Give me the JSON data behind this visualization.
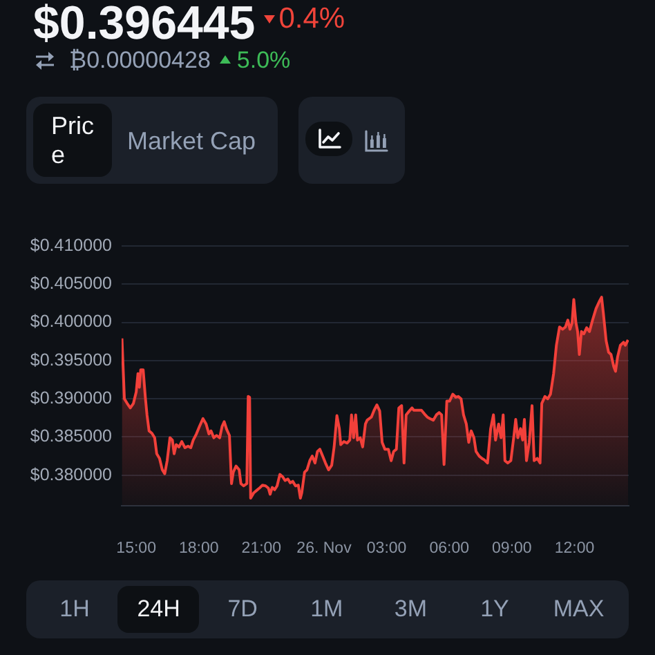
{
  "chart_data": {
    "type": "area",
    "title": "$0.396445",
    "annotations": [
      "0.4%",
      "₿0.00000428",
      "5.0%",
      "Price",
      "Market Cap",
      "1H",
      "24H",
      "7D",
      "1M",
      "3M",
      "1Y",
      "MAX"
    ],
    "x": [
      "--11-25T14:19",
      "--11-25T14:26",
      "--11-25T14:34",
      "--11-25T14:43",
      "--11-25T14:52",
      "--11-25T15:00",
      "--11-25T15:05",
      "--11-25T15:09",
      "--11-25T15:13",
      "--11-25T15:20",
      "--11-25T15:26",
      "--11-25T15:31",
      "--11-25T15:37",
      "--11-25T15:45",
      "--11-25T15:53",
      "--11-25T15:59",
      "--11-25T16:07",
      "--11-25T16:15",
      "--11-25T16:22",
      "--11-25T16:29",
      "--11-25T16:37",
      "--11-25T16:44",
      "--11-25T16:49",
      "--11-25T16:55",
      "--11-25T17:03",
      "--11-25T17:11",
      "--11-25T17:20",
      "--11-25T17:29",
      "--11-25T17:37",
      "--11-25T17:44",
      "--11-25T17:53",
      "--11-25T18:02",
      "--11-25T18:12",
      "--11-25T18:21",
      "--11-25T18:29",
      "--11-25T18:35",
      "--11-25T18:43",
      "--11-25T18:51",
      "--11-25T19:00",
      "--11-25T19:07",
      "--11-25T19:13",
      "--11-25T19:20",
      "--11-25T19:28",
      "--11-25T19:34",
      "--11-25T19:39",
      "--11-25T19:47",
      "--11-25T19:56",
      "--11-25T20:01",
      "--11-25T20:09",
      "--11-25T20:18",
      "--11-25T20:22",
      "--11-25T20:26",
      "--11-25T20:29",
      "--11-25T20:38",
      "--11-25T20:46",
      "--11-25T20:54",
      "--11-25T21:03",
      "--11-25T21:12",
      "--11-25T21:20",
      "--11-25T21:25",
      "--11-25T21:31",
      "--11-25T21:38",
      "--11-25T21:45",
      "--11-25T21:53",
      "--11-25T22:01",
      "--11-25T22:08",
      "--11-25T22:16",
      "--11-25T22:23",
      "--11-25T22:30",
      "--11-25T22:38",
      "--11-25T22:46",
      "--11-25T22:52",
      "--11-25T22:56",
      "--11-25T23:04",
      "--11-25T23:11",
      "--11-25T23:19",
      "--11-25T23:26",
      "--11-25T23:34",
      "--11-25T23:41",
      "--11-25T23:48",
      "--11-25T23:56",
      "--11-26T00:04",
      "--11-26T00:13",
      "--11-26T00:22",
      "--11-26T00:29",
      "--11-26T00:37",
      "--11-26T00:44",
      "--11-26T00:48",
      "--11-26T00:57",
      "--11-26T01:06",
      "--11-26T01:14",
      "--11-26T01:19",
      "--11-26T01:25",
      "--11-26T01:31",
      "--11-26T01:36",
      "--11-26T01:44",
      "--11-26T01:51",
      "--11-26T01:59",
      "--11-26T02:04",
      "--11-26T02:16",
      "--11-26T02:24",
      "--11-26T02:32",
      "--11-26T02:40",
      "--11-26T02:47",
      "--11-26T02:55",
      "--11-26T03:05",
      "--11-26T03:13",
      "--11-26T03:20",
      "--11-26T03:28",
      "--11-26T03:35",
      "--11-26T03:43",
      "--11-26T03:50",
      "--11-26T03:56",
      "--11-26T04:05",
      "--11-26T04:13",
      "--11-26T04:18",
      "--11-26T04:29",
      "--11-26T04:40",
      "--11-26T04:49",
      "--11-26T04:57",
      "--11-26T05:05",
      "--11-26T05:14",
      "--11-26T05:23",
      "--11-26T05:31",
      "--11-26T05:38",
      "--11-26T05:45",
      "--11-26T05:53",
      "--11-26T06:01",
      "--11-26T06:10",
      "--11-26T06:19",
      "--11-26T06:26",
      "--11-26T06:34",
      "--11-26T06:41",
      "--11-26T06:49",
      "--11-26T06:56",
      "--11-26T07:03",
      "--11-26T07:11",
      "--11-26T07:17",
      "--11-26T07:26",
      "--11-26T07:34",
      "--11-26T07:41",
      "--11-26T07:50",
      "--11-26T07:59",
      "--11-26T08:07",
      "--11-26T08:13",
      "--11-26T08:22",
      "--11-26T08:29",
      "--11-26T08:35",
      "--11-26T08:40",
      "--11-26T08:48",
      "--11-26T08:57",
      "--11-26T09:06",
      "--11-26T09:11",
      "--11-26T09:17",
      "--11-26T09:25",
      "--11-26T09:31",
      "--11-26T09:36",
      "--11-26T09:42",
      "--11-26T09:50",
      "--11-26T09:58",
      "--11-26T10:04",
      "--11-26T10:13",
      "--11-26T10:21",
      "--11-26T10:26",
      "--11-26T10:35",
      "--11-26T10:43",
      "--11-26T10:51",
      "--11-26T11:00",
      "--11-26T11:08",
      "--11-26T11:17",
      "--11-26T11:26",
      "--11-26T11:34",
      "--11-26T11:41",
      "--11-26T11:47",
      "--11-26T11:53",
      "--11-26T11:58",
      "--11-26T12:04",
      "--11-26T12:09",
      "--11-26T12:14",
      "--11-26T12:20",
      "--11-26T12:27",
      "--11-26T12:35",
      "--11-26T12:43",
      "--11-26T12:52",
      "--11-26T13:02",
      "--11-26T13:11",
      "--11-26T13:18",
      "--11-26T13:23",
      "--11-26T13:31",
      "--11-26T13:38",
      "--11-26T13:45",
      "--11-26T13:53",
      "--11-26T13:58",
      "--11-26T14:04",
      "--11-26T14:12",
      "--11-26T14:21",
      "--11-26T14:26",
      "--11-26T14:34"
    ],
    "values": [
      0.3979,
      0.39,
      0.3894,
      0.3888,
      0.3894,
      0.3909,
      0.3933,
      0.3915,
      0.3938,
      0.3938,
      0.3903,
      0.3879,
      0.3858,
      0.3855,
      0.3849,
      0.3828,
      0.3822,
      0.3807,
      0.3802,
      0.3819,
      0.3849,
      0.3846,
      0.3828,
      0.384,
      0.3837,
      0.3844,
      0.3836,
      0.3838,
      0.3836,
      0.3846,
      0.3854,
      0.3864,
      0.3874,
      0.3867,
      0.3854,
      0.3858,
      0.3849,
      0.3852,
      0.3849,
      0.3864,
      0.387,
      0.386,
      0.3852,
      0.3789,
      0.3804,
      0.3812,
      0.3807,
      0.3789,
      0.3786,
      0.3789,
      0.3903,
      0.3902,
      0.377,
      0.3777,
      0.378,
      0.3783,
      0.3787,
      0.3786,
      0.3783,
      0.3775,
      0.3784,
      0.3781,
      0.3786,
      0.3801,
      0.3798,
      0.3793,
      0.3795,
      0.379,
      0.3792,
      0.3786,
      0.3787,
      0.377,
      0.3777,
      0.3804,
      0.3807,
      0.3819,
      0.3825,
      0.3816,
      0.3831,
      0.3834,
      0.3825,
      0.3816,
      0.3807,
      0.3813,
      0.3837,
      0.3878,
      0.3861,
      0.384,
      0.3844,
      0.3842,
      0.3846,
      0.3879,
      0.3849,
      0.3879,
      0.3846,
      0.3849,
      0.3837,
      0.3867,
      0.3872,
      0.3876,
      0.3885,
      0.3892,
      0.3884,
      0.3843,
      0.3834,
      0.3834,
      0.3819,
      0.3831,
      0.3834,
      0.3888,
      0.3891,
      0.3816,
      0.3879,
      0.3884,
      0.3888,
      0.3885,
      0.3885,
      0.3885,
      0.388,
      0.3876,
      0.3874,
      0.3872,
      0.3879,
      0.3882,
      0.3879,
      0.3814,
      0.3897,
      0.3897,
      0.3906,
      0.3902,
      0.3903,
      0.39,
      0.3879,
      0.3867,
      0.3843,
      0.3858,
      0.3849,
      0.3831,
      0.3825,
      0.3822,
      0.382,
      0.3816,
      0.3861,
      0.3879,
      0.3846,
      0.3867,
      0.3849,
      0.3879,
      0.3819,
      0.3816,
      0.3819,
      0.3852,
      0.3873,
      0.3849,
      0.3861,
      0.3846,
      0.3873,
      0.3819,
      0.3843,
      0.3891,
      0.3819,
      0.3822,
      0.3816,
      0.3894,
      0.3903,
      0.39,
      0.3906,
      0.3933,
      0.397,
      0.3994,
      0.3991,
      0.3994,
      0.4003,
      0.3991,
      0.3999,
      0.403,
      0.4,
      0.3988,
      0.3958,
      0.3988,
      0.3985,
      0.3993,
      0.3988,
      0.4003,
      0.4018,
      0.4027,
      0.4033,
      0.4012,
      0.3976,
      0.3961,
      0.3958,
      0.3942,
      0.3936,
      0.3955,
      0.397,
      0.3974,
      0.397,
      0.3977
    ],
    "color": "#f2403a",
    "xlim": [
      "--11-25T14:18",
      "--11-26T14:36"
    ],
    "xticks": [
      {
        "value": "--11-25T15:00",
        "label": "15:00"
      },
      {
        "value": "--11-25T18:00",
        "label": "18:00"
      },
      {
        "value": "--11-25T21:00",
        "label": "21:00"
      },
      {
        "value": "--11-26",
        "label": "26. Nov"
      },
      {
        "value": "--11-26T03:00",
        "label": "03:00"
      },
      {
        "value": "--11-26T06:00",
        "label": "06:00"
      },
      {
        "value": "--11-26T09:00",
        "label": "09:00"
      },
      {
        "value": "--11-26T12:00",
        "label": "12:00"
      }
    ],
    "ylim": [
      0.376,
      0.41
    ],
    "yticks": [
      {
        "value": 0.38,
        "label": "$0.380000"
      },
      {
        "value": 0.385,
        "label": "$0.385000"
      },
      {
        "value": 0.39,
        "label": "$0.390000"
      },
      {
        "value": 0.395,
        "label": "$0.395000"
      },
      {
        "value": 0.4,
        "label": "$0.400000"
      },
      {
        "value": 0.405,
        "label": "$0.405000"
      },
      {
        "value": 0.41,
        "label": "$0.410000"
      }
    ],
    "grid": "y"
  }
}
